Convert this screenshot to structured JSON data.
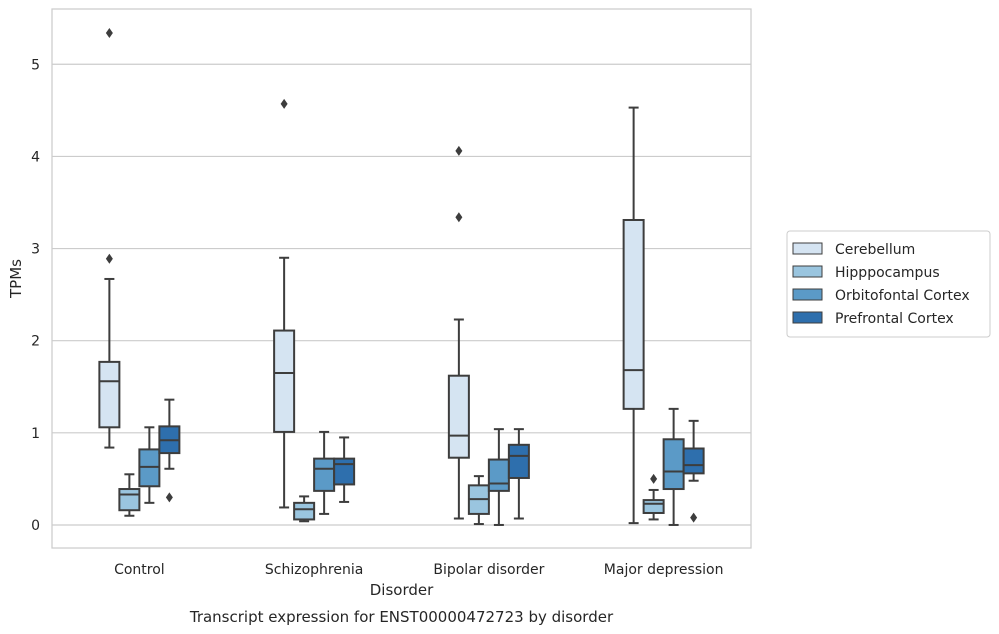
{
  "chart_data": {
    "type": "box",
    "title": "Transcript expression for ENST00000472723 by disorder",
    "xlabel": "Disorder",
    "ylabel": "TPMs",
    "ylim": [
      -0.25,
      5.6
    ],
    "yticks": [
      0,
      1,
      2,
      3,
      4,
      5
    ],
    "grid": true,
    "legend_position": "right",
    "categories": [
      "Control",
      "Schizophrenia",
      "Bipolar disorder",
      "Major depression"
    ],
    "series": [
      {
        "name": "Cerebellum",
        "color": "#d5e4f2",
        "boxes": [
          {
            "whisker_low": 0.84,
            "q1": 1.06,
            "median": 1.56,
            "q3": 1.77,
            "whisker_high": 2.67,
            "outliers": [
              2.89,
              5.34
            ]
          },
          {
            "whisker_low": 0.19,
            "q1": 1.01,
            "median": 1.65,
            "q3": 2.11,
            "whisker_high": 2.9,
            "outliers": [
              4.57
            ]
          },
          {
            "whisker_low": 0.07,
            "q1": 0.73,
            "median": 0.97,
            "q3": 1.62,
            "whisker_high": 2.23,
            "outliers": [
              3.34,
              4.06
            ]
          },
          {
            "whisker_low": 0.02,
            "q1": 1.26,
            "median": 1.68,
            "q3": 3.31,
            "whisker_high": 4.53,
            "outliers": []
          }
        ]
      },
      {
        "name": "Hipppocampus",
        "color": "#9ac5df",
        "boxes": [
          {
            "whisker_low": 0.1,
            "q1": 0.16,
            "median": 0.33,
            "q3": 0.39,
            "whisker_high": 0.55,
            "outliers": []
          },
          {
            "whisker_low": 0.04,
            "q1": 0.06,
            "median": 0.17,
            "q3": 0.24,
            "whisker_high": 0.31,
            "outliers": []
          },
          {
            "whisker_low": 0.01,
            "q1": 0.12,
            "median": 0.28,
            "q3": 0.43,
            "whisker_high": 0.53,
            "outliers": []
          },
          {
            "whisker_low": 0.06,
            "q1": 0.13,
            "median": 0.23,
            "q3": 0.27,
            "whisker_high": 0.38,
            "outliers": [
              0.5
            ]
          }
        ]
      },
      {
        "name": "Orbitofontal Cortex",
        "color": "#5b9ac7",
        "boxes": [
          {
            "whisker_low": 0.24,
            "q1": 0.42,
            "median": 0.63,
            "q3": 0.82,
            "whisker_high": 1.06,
            "outliers": []
          },
          {
            "whisker_low": 0.12,
            "q1": 0.37,
            "median": 0.61,
            "q3": 0.72,
            "whisker_high": 1.01,
            "outliers": []
          },
          {
            "whisker_low": 0.0,
            "q1": 0.37,
            "median": 0.45,
            "q3": 0.71,
            "whisker_high": 1.04,
            "outliers": []
          },
          {
            "whisker_low": 0.0,
            "q1": 0.39,
            "median": 0.58,
            "q3": 0.93,
            "whisker_high": 1.26,
            "outliers": []
          }
        ]
      },
      {
        "name": "Prefrontal Cortex",
        "color": "#2e6fad",
        "boxes": [
          {
            "whisker_low": 0.61,
            "q1": 0.78,
            "median": 0.92,
            "q3": 1.07,
            "whisker_high": 1.36,
            "outliers": [
              0.3
            ]
          },
          {
            "whisker_low": 0.25,
            "q1": 0.44,
            "median": 0.66,
            "q3": 0.72,
            "whisker_high": 0.95,
            "outliers": []
          },
          {
            "whisker_low": 0.07,
            "q1": 0.51,
            "median": 0.75,
            "q3": 0.87,
            "whisker_high": 1.04,
            "outliers": []
          },
          {
            "whisker_low": 0.48,
            "q1": 0.56,
            "median": 0.65,
            "q3": 0.83,
            "whisker_high": 1.13,
            "outliers": [
              0.08
            ]
          }
        ]
      }
    ]
  }
}
